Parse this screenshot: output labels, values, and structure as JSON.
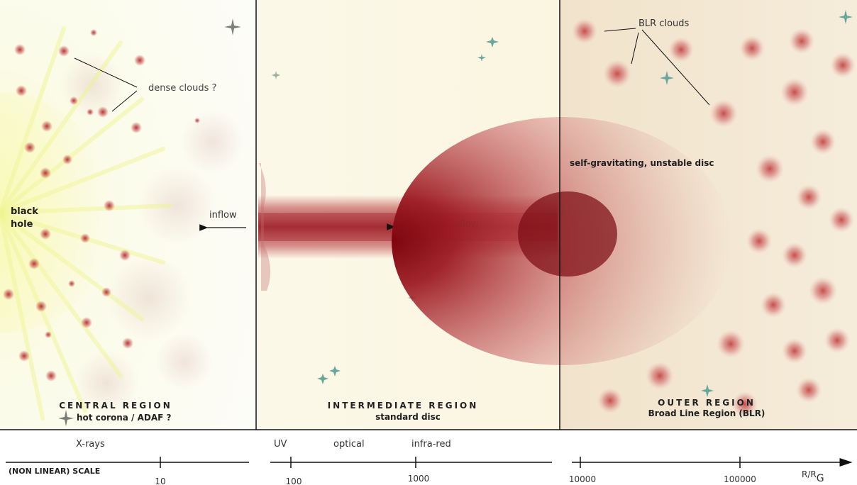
{
  "panels": {
    "central": {
      "title": "CENTRAL REGION",
      "subtitle": "hot corona / ADAF ?",
      "label_black_hole_1": "black",
      "label_black_hole_2": "hole",
      "label_dense_clouds": "dense clouds ?",
      "label_inflow": "inflow"
    },
    "intermediate": {
      "title": "INTERMEDIATE REGION",
      "subtitle": "standard disc",
      "label_inflow": "inflow"
    },
    "outer": {
      "title": "OUTER REGION",
      "subtitle": "Broad Line Region (BLR)",
      "label_blr_clouds": "BLR clouds",
      "label_disc": "self-gravitating, unstable disc"
    }
  },
  "bands": {
    "xrays": "X-rays",
    "uv": "UV",
    "optical": "optical",
    "infrared": "infra-red"
  },
  "scale": {
    "label": "(NON LINEAR) SCALE",
    "ticks": [
      "10",
      "100",
      "1000",
      "10000",
      "100000"
    ],
    "unit_main": "R/R",
    "unit_sub": "G"
  },
  "colors": {
    "cloud": "#b52a2a",
    "disc": "#9c1620",
    "star": "#6aa79b",
    "corona": "#f0f58a"
  }
}
